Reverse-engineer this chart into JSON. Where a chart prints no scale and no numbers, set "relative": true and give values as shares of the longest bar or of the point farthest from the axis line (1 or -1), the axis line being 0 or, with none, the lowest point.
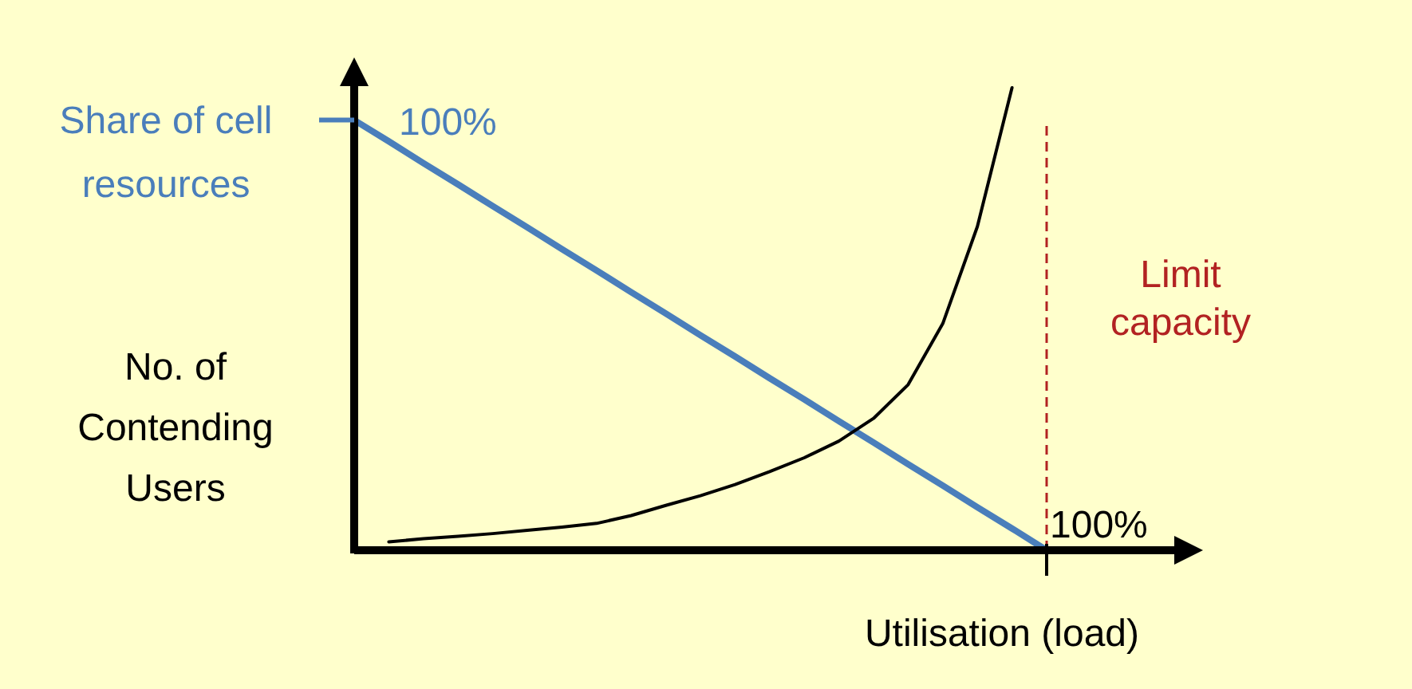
{
  "chart_data": {
    "type": "line",
    "relative": true,
    "xlabel": "Utilisation (load)",
    "ylabel": "No. of Contending Users",
    "categories": [
      null,
      null,
      null,
      null,
      null,
      null,
      null,
      null,
      null,
      null,
      null,
      null,
      null,
      null,
      null,
      null,
      null,
      null,
      null,
      null,
      null
    ],
    "series": [
      {
        "name": "Share of cell resources",
        "color": "#4a7ebb",
        "values": [
          0.93,
          0.884,
          0.837,
          0.791,
          0.744,
          0.698,
          0.651,
          0.605,
          0.558,
          0.512,
          0.465,
          0.419,
          0.372,
          0.326,
          0.279,
          0.233,
          0.186,
          0.14,
          0.093,
          0.047,
          0
        ]
      },
      {
        "color": "#000000",
        "values": [
          null,
          0.018,
          0.025,
          0.03,
          0.036,
          0.043,
          0.05,
          0.058,
          0.075,
          0.097,
          0.118,
          0.142,
          0.17,
          0.2,
          0.236,
          0.285,
          0.358,
          0.49,
          0.7,
          1,
          null
        ]
      }
    ],
    "annotations": [
      "100%",
      "100%"
    ],
    "ref_lines": [
      {
        "axis": "x",
        "label": "Limit capacity",
        "color": "#b22222",
        "line_style": "dashed"
      }
    ]
  }
}
